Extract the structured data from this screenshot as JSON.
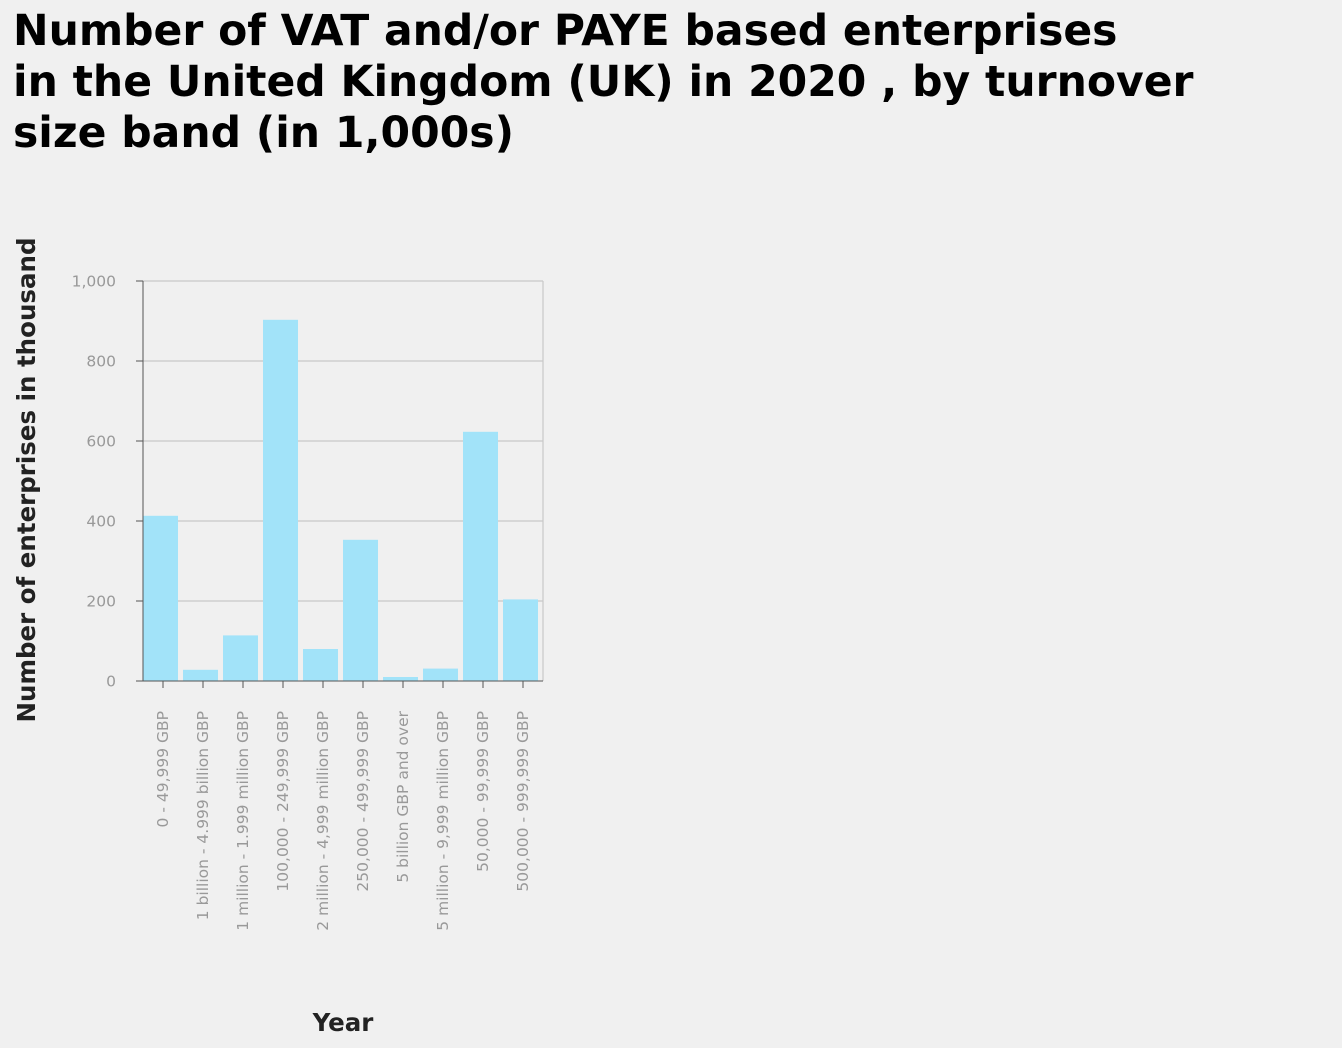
{
  "chart_data": {
    "type": "bar",
    "title": "Number of VAT and/or PAYE based enterprises\nin the United Kingdom (UK) in 2020 , by turnover\nsize band (in 1,000s)",
    "xlabel": "Year",
    "ylabel": "Number of enterprises in thousand",
    "categories": [
      "0 - 49,999 GBP",
      "1 billion - 4.999 billion GBP",
      "1 million - 1.999 million GBP",
      "100,000 - 249,999 GBP",
      "2 million - 4,999 million GBP",
      "250,000 - 499,999 GBP",
      "5 billion GBP and over",
      "5 million - 9,999 million GBP",
      "50,000 - 99,999 GBP",
      "500,000 - 999,999 GBP"
    ],
    "values": [
      413,
      28,
      114,
      903,
      80,
      353,
      10,
      31,
      623,
      204
    ],
    "ylim": [
      0,
      1000
    ],
    "yticks": [
      0,
      200,
      400,
      600,
      800,
      1000
    ],
    "ytick_labels": [
      "0",
      "200",
      "400",
      "600",
      "800",
      "1,000"
    ],
    "grid": "horizontal",
    "bar_color": "#a2e3f9",
    "grid_color": "#c8c8c8",
    "tick_label_color": "#999999"
  }
}
